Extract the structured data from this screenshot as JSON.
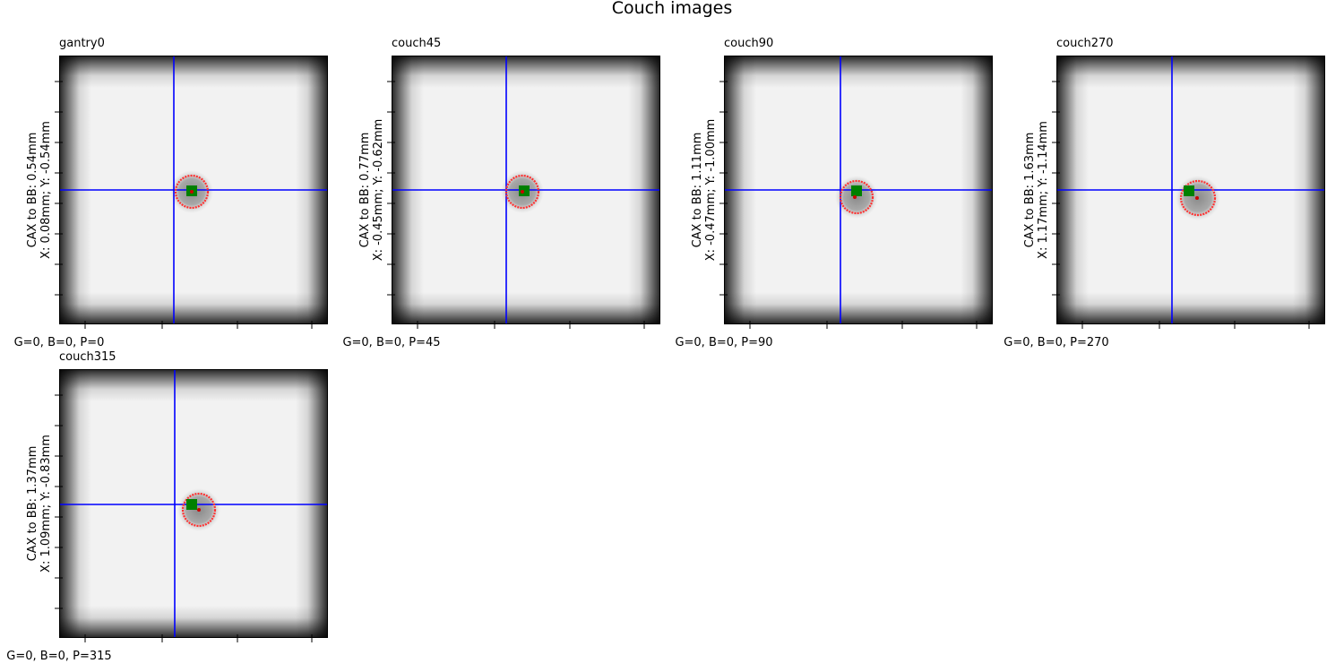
{
  "figure": {
    "suptitle": "Couch images"
  },
  "chart_data": [
    {
      "type": "heatmap",
      "title": "gantry0",
      "xlabel": "G=0, B=0, P=0",
      "ylabel": [
        "CAX to BB: 0.54mm",
        "X: 0.08mm; Y: -0.54mm"
      ],
      "cax_to_bb_mm": 0.54,
      "x_mm": 0.08,
      "y_mm": -0.54,
      "gantry": 0,
      "collimator": 0,
      "couch": 0
    },
    {
      "type": "heatmap",
      "title": "couch45",
      "xlabel": "G=0, B=0, P=45",
      "ylabel": [
        "CAX to BB: 0.77mm",
        "X: -0.45mm; Y: -0.62mm"
      ],
      "cax_to_bb_mm": 0.77,
      "x_mm": -0.45,
      "y_mm": -0.62,
      "gantry": 0,
      "collimator": 0,
      "couch": 45
    },
    {
      "type": "heatmap",
      "title": "couch90",
      "xlabel": "G=0, B=0, P=90",
      "ylabel": [
        "CAX to BB: 1.11mm",
        "X: -0.47mm; Y: -1.00mm"
      ],
      "cax_to_bb_mm": 1.11,
      "x_mm": -0.47,
      "y_mm": -1.0,
      "gantry": 0,
      "collimator": 0,
      "couch": 90
    },
    {
      "type": "heatmap",
      "title": "couch270",
      "xlabel": "G=0, B=0, P=270",
      "ylabel": [
        "CAX to BB: 1.63mm",
        "X: 1.17mm; Y: -1.14mm"
      ],
      "cax_to_bb_mm": 1.63,
      "x_mm": 1.17,
      "y_mm": -1.14,
      "gantry": 0,
      "collimator": 0,
      "couch": 270
    },
    {
      "type": "heatmap",
      "title": "couch315",
      "xlabel": "G=0, B=0, P=315",
      "ylabel": [
        "CAX to BB: 1.37mm",
        "X: 1.09mm; Y: -0.83mm"
      ],
      "cax_to_bb_mm": 1.37,
      "x_mm": 1.09,
      "y_mm": -0.83,
      "gantry": 0,
      "collimator": 0,
      "couch": 315
    }
  ],
  "colors": {
    "crosshair": "#0000ff",
    "bb_contour": "#ff3030",
    "epid_marker": "#008000",
    "bb_center": "#cc0000"
  }
}
